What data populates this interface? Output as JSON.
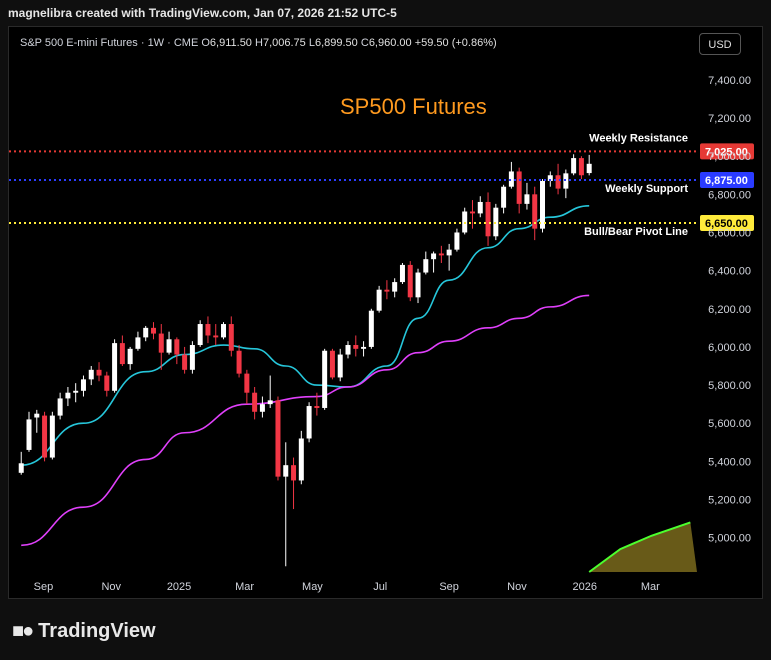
{
  "header": {
    "credit": "magnelibra created with TradingView.com, Jan 07, 2026 21:52 UTC-5"
  },
  "legend": {
    "symbol": "S&P 500 E-mini Futures · 1W · CME",
    "open_label": "O",
    "open": "6,911.50",
    "high_label": "H",
    "high": "7,006.75",
    "low_label": "L",
    "low": "6,899.50",
    "close_label": "C",
    "close": "6,960.00",
    "change": "+59.50 (+0.86%)"
  },
  "currency_button": "USD",
  "footer": {
    "brand": "TradingView"
  },
  "chart_data": {
    "type": "candlestick",
    "title": "SP500 Futures",
    "ylim": [
      4820,
      7520
    ],
    "y_ticks": [
      "7,400.00",
      "7,200.00",
      "7,000.00",
      "6,800.00",
      "6,600.00",
      "6,400.00",
      "6,200.00",
      "6,000.00",
      "5,800.00",
      "5,600.00",
      "5,400.00",
      "5,200.00",
      "5,000.00"
    ],
    "y_tick_values": [
      7400,
      7200,
      7000,
      6800,
      6600,
      6400,
      6200,
      6000,
      5800,
      5600,
      5400,
      5200,
      5000
    ],
    "x_ticks": [
      "Sep",
      "Nov",
      "2025",
      "Mar",
      "May",
      "Jul",
      "Sep",
      "Nov",
      "2026",
      "Mar"
    ],
    "x_tick_dates": [
      "2024-09-01",
      "2024-11-01",
      "2025-01-01",
      "2025-03-01",
      "2025-05-01",
      "2025-07-01",
      "2025-09-01",
      "2025-11-01",
      "2026-01-01",
      "2026-03-01"
    ],
    "x_range": [
      "2024-08-01",
      "2026-04-12"
    ],
    "levels": [
      {
        "name": "Weekly Resistance",
        "value": 7025,
        "badge": "7,025.00",
        "color": "#e53935"
      },
      {
        "name": "Weekly Support",
        "value": 6875,
        "badge": "6,875.00",
        "color": "#2a3bff"
      },
      {
        "name": "Bull/Bear Pivot Line",
        "value": 6650,
        "badge": "6,650.00",
        "color": "#ffeb3b"
      }
    ],
    "moving_averages": [
      {
        "color": "#26c6da",
        "points": [
          [
            "2024-08-12",
            5380
          ],
          [
            "2024-10-07",
            5600
          ],
          [
            "2024-12-02",
            5870
          ],
          [
            "2025-01-06",
            5960
          ],
          [
            "2025-02-10",
            6010
          ],
          [
            "2025-03-10",
            5990
          ],
          [
            "2025-04-07",
            5900
          ],
          [
            "2025-05-05",
            5800
          ],
          [
            "2025-06-02",
            5790
          ],
          [
            "2025-07-07",
            5900
          ],
          [
            "2025-08-04",
            6150
          ],
          [
            "2025-09-01",
            6350
          ],
          [
            "2025-10-06",
            6520
          ],
          [
            "2025-11-03",
            6620
          ],
          [
            "2025-12-01",
            6680
          ],
          [
            "2026-01-05",
            6740
          ]
        ]
      },
      {
        "color": "#e040fb",
        "points": [
          [
            "2024-08-12",
            4960
          ],
          [
            "2024-10-07",
            5160
          ],
          [
            "2024-12-02",
            5410
          ],
          [
            "2025-01-06",
            5550
          ],
          [
            "2025-03-03",
            5700
          ],
          [
            "2025-05-05",
            5740
          ],
          [
            "2025-06-02",
            5790
          ],
          [
            "2025-07-07",
            5880
          ],
          [
            "2025-08-04",
            5970
          ],
          [
            "2025-09-01",
            6030
          ],
          [
            "2025-10-06",
            6100
          ],
          [
            "2025-11-03",
            6150
          ],
          [
            "2025-12-01",
            6210
          ],
          [
            "2026-01-05",
            6270
          ]
        ]
      }
    ],
    "projection": {
      "color": "#4cff2e",
      "points": [
        [
          "2026-01-05",
          4820
        ],
        [
          "2026-02-02",
          4940
        ],
        [
          "2026-03-02",
          5010
        ],
        [
          "2026-04-06",
          5080
        ]
      ]
    },
    "candles": [
      [
        "2024-08-12",
        5340,
        5450,
        5330,
        5390
      ],
      [
        "2024-08-19",
        5460,
        5660,
        5450,
        5620
      ],
      [
        "2024-08-26",
        5630,
        5670,
        5550,
        5650
      ],
      [
        "2024-09-02",
        5640,
        5660,
        5400,
        5420
      ],
      [
        "2024-09-09",
        5420,
        5660,
        5410,
        5640
      ],
      [
        "2024-09-16",
        5640,
        5760,
        5620,
        5730
      ],
      [
        "2024-09-23",
        5730,
        5790,
        5690,
        5760
      ],
      [
        "2024-09-30",
        5760,
        5810,
        5710,
        5770
      ],
      [
        "2024-10-07",
        5770,
        5850,
        5740,
        5830
      ],
      [
        "2024-10-14",
        5830,
        5900,
        5800,
        5880
      ],
      [
        "2024-10-21",
        5880,
        5920,
        5820,
        5850
      ],
      [
        "2024-10-28",
        5850,
        5870,
        5740,
        5770
      ],
      [
        "2024-11-04",
        5770,
        6040,
        5760,
        6020
      ],
      [
        "2024-11-11",
        6020,
        6060,
        5900,
        5910
      ],
      [
        "2024-11-18",
        5910,
        6000,
        5880,
        5990
      ],
      [
        "2024-11-25",
        5990,
        6080,
        5980,
        6050
      ],
      [
        "2024-12-02",
        6050,
        6110,
        6030,
        6100
      ],
      [
        "2024-12-09",
        6100,
        6130,
        6040,
        6070
      ],
      [
        "2024-12-16",
        6070,
        6120,
        5880,
        5970
      ],
      [
        "2024-12-23",
        5970,
        6080,
        5960,
        6040
      ],
      [
        "2024-12-30",
        6040,
        6050,
        5910,
        5960
      ],
      [
        "2025-01-06",
        5960,
        6000,
        5860,
        5880
      ],
      [
        "2025-01-13",
        5880,
        6030,
        5860,
        6010
      ],
      [
        "2025-01-20",
        6010,
        6140,
        6000,
        6120
      ],
      [
        "2025-01-27",
        6120,
        6160,
        6020,
        6060
      ],
      [
        "2025-02-03",
        6060,
        6120,
        6010,
        6050
      ],
      [
        "2025-02-10",
        6050,
        6130,
        6040,
        6120
      ],
      [
        "2025-02-17",
        6120,
        6160,
        5950,
        5980
      ],
      [
        "2025-02-24",
        5980,
        6010,
        5840,
        5860
      ],
      [
        "2025-03-03",
        5860,
        5880,
        5700,
        5760
      ],
      [
        "2025-03-10",
        5760,
        5790,
        5620,
        5660
      ],
      [
        "2025-03-17",
        5660,
        5740,
        5630,
        5700
      ],
      [
        "2025-03-24",
        5700,
        5850,
        5680,
        5720
      ],
      [
        "2025-03-31",
        5720,
        5740,
        5300,
        5320
      ],
      [
        "2025-04-07",
        5320,
        5500,
        4850,
        5380
      ],
      [
        "2025-04-14",
        5380,
        5420,
        5150,
        5300
      ],
      [
        "2025-04-21",
        5300,
        5560,
        5280,
        5520
      ],
      [
        "2025-04-28",
        5520,
        5710,
        5500,
        5690
      ],
      [
        "2025-05-05",
        5690,
        5760,
        5640,
        5680
      ],
      [
        "2025-05-12",
        5680,
        5990,
        5670,
        5980
      ],
      [
        "2025-05-19",
        5980,
        5990,
        5830,
        5840
      ],
      [
        "2025-05-26",
        5840,
        5990,
        5820,
        5960
      ],
      [
        "2025-06-02",
        5960,
        6030,
        5940,
        6010
      ],
      [
        "2025-06-09",
        6010,
        6060,
        5950,
        5990
      ],
      [
        "2025-06-16",
        5990,
        6030,
        5950,
        6000
      ],
      [
        "2025-06-23",
        6000,
        6200,
        5990,
        6190
      ],
      [
        "2025-06-30",
        6190,
        6320,
        6180,
        6300
      ],
      [
        "2025-07-07",
        6300,
        6350,
        6250,
        6290
      ],
      [
        "2025-07-14",
        6290,
        6360,
        6260,
        6340
      ],
      [
        "2025-07-21",
        6340,
        6440,
        6330,
        6430
      ],
      [
        "2025-07-28",
        6430,
        6450,
        6240,
        6260
      ],
      [
        "2025-08-04",
        6260,
        6410,
        6230,
        6390
      ],
      [
        "2025-08-11",
        6390,
        6500,
        6380,
        6460
      ],
      [
        "2025-08-18",
        6460,
        6500,
        6390,
        6490
      ],
      [
        "2025-08-25",
        6490,
        6530,
        6440,
        6480
      ],
      [
        "2025-09-01",
        6480,
        6540,
        6400,
        6510
      ],
      [
        "2025-09-08",
        6510,
        6620,
        6500,
        6600
      ],
      [
        "2025-09-15",
        6600,
        6730,
        6590,
        6710
      ],
      [
        "2025-09-22",
        6710,
        6770,
        6620,
        6700
      ],
      [
        "2025-09-29",
        6700,
        6790,
        6680,
        6760
      ],
      [
        "2025-10-06",
        6760,
        6810,
        6530,
        6580
      ],
      [
        "2025-10-13",
        6580,
        6750,
        6560,
        6730
      ],
      [
        "2025-10-20",
        6730,
        6850,
        6700,
        6840
      ],
      [
        "2025-10-27",
        6840,
        6970,
        6830,
        6920
      ],
      [
        "2025-11-03",
        6920,
        6940,
        6700,
        6750
      ],
      [
        "2025-11-10",
        6750,
        6860,
        6720,
        6800
      ],
      [
        "2025-11-17",
        6800,
        6840,
        6560,
        6620
      ],
      [
        "2025-11-24",
        6620,
        6880,
        6600,
        6870
      ],
      [
        "2025-12-01",
        6870,
        6920,
        6840,
        6900
      ],
      [
        "2025-12-08",
        6900,
        6960,
        6800,
        6830
      ],
      [
        "2025-12-15",
        6830,
        6930,
        6780,
        6910
      ],
      [
        "2025-12-22",
        6910,
        7010,
        6900,
        6990
      ],
      [
        "2025-12-29",
        6990,
        7000,
        6880,
        6900
      ],
      [
        "2026-01-05",
        6911.5,
        7006.75,
        6899.5,
        6960
      ]
    ]
  }
}
